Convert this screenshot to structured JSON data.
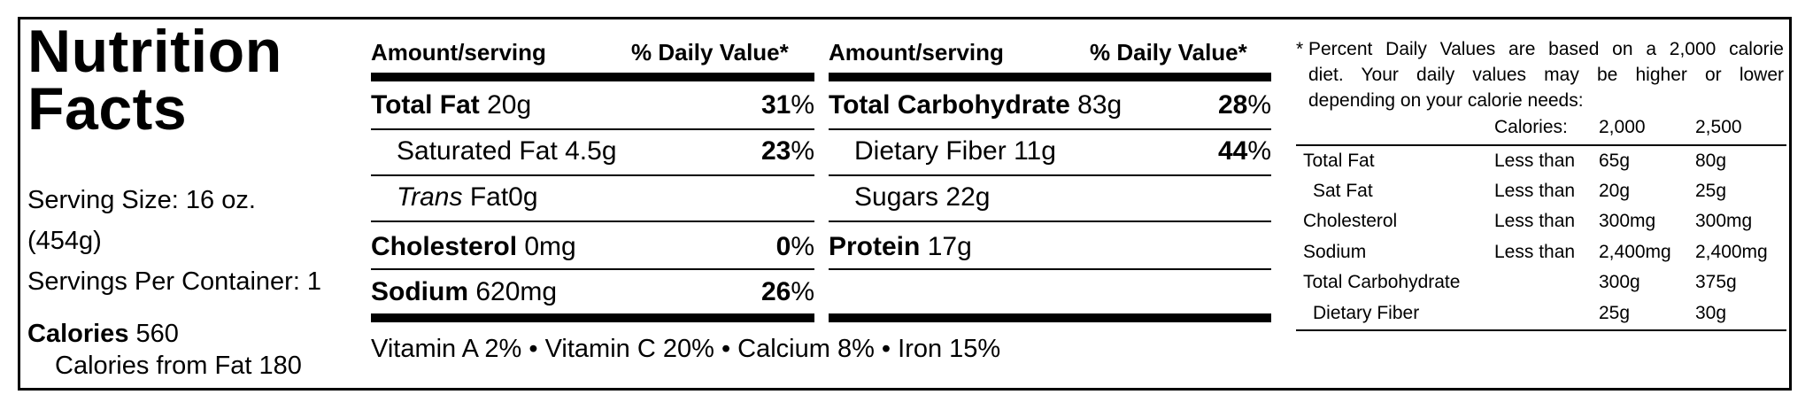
{
  "title_line1": "Nutrition",
  "title_line2": "Facts",
  "serving_size_line1": "Serving Size: 16 oz.",
  "serving_size_line2": "(454g)",
  "servings_per_container": "Servings Per Container: 1",
  "calories_label": "Calories",
  "calories_value": "560",
  "calories_from_fat": "Calories from Fat 180",
  "header_amount": "Amount/serving",
  "header_dv": "% Daily Value*",
  "left_rows": {
    "total_fat": {
      "label": "Total Fat",
      "amount": "20g",
      "pct": "31",
      "sign": "%"
    },
    "sat_fat": {
      "label": "Saturated Fat",
      "amount": "4.5g",
      "pct": "23",
      "sign": "%"
    },
    "trans_fat": {
      "label": "Trans",
      "label2": "Fat",
      "amount": "0g"
    },
    "cholesterol": {
      "label": "Cholesterol",
      "amount": "0mg",
      "pct": "0",
      "sign": "%"
    },
    "sodium": {
      "label": "Sodium",
      "amount": "620mg",
      "pct": "26",
      "sign": "%"
    }
  },
  "right_rows": {
    "total_carb": {
      "label": "Total Carbohydrate",
      "amount": "83g",
      "pct": "28",
      "sign": "%"
    },
    "fiber": {
      "label": "Dietary Fiber",
      "amount": "11g",
      "pct": "44",
      "sign": "%"
    },
    "sugars": {
      "label": "Sugars",
      "amount": "22g"
    },
    "protein": {
      "label": "Protein",
      "amount": "17g"
    }
  },
  "vitamins": "Vitamin A 2% • Vitamin C 20% • Calcium 8% • Iron 15%",
  "footnote_star": "*",
  "footnote_line1": "Percent Daily Values are based on a 2,000 calorie",
  "footnote_line2": "diet. Your daily values may be higher or lower",
  "footnote_line3": "depending on your calorie needs:",
  "daily_table": {
    "header": {
      "calories": "Calories:",
      "c2000": "2,000",
      "c2500": "2,500"
    },
    "rows": [
      {
        "nutrient": "Total Fat",
        "qual": "Less than",
        "v2000": "65g",
        "v2500": "80g"
      },
      {
        "nutrient": "Sat Fat",
        "qual": "Less than",
        "v2000": "20g",
        "v2500": "25g"
      },
      {
        "nutrient": "Cholesterol",
        "qual": "Less than",
        "v2000": "300mg",
        "v2500": "300mg"
      },
      {
        "nutrient": "Sodium",
        "qual": "Less than",
        "v2000": "2,400mg",
        "v2500": "2,400mg"
      },
      {
        "nutrient": "Total Carbohydrate",
        "qual": "",
        "v2000": "300g",
        "v2500": "375g"
      },
      {
        "nutrient": "Dietary Fiber",
        "qual": "",
        "v2000": "25g",
        "v2500": "30g"
      }
    ]
  }
}
